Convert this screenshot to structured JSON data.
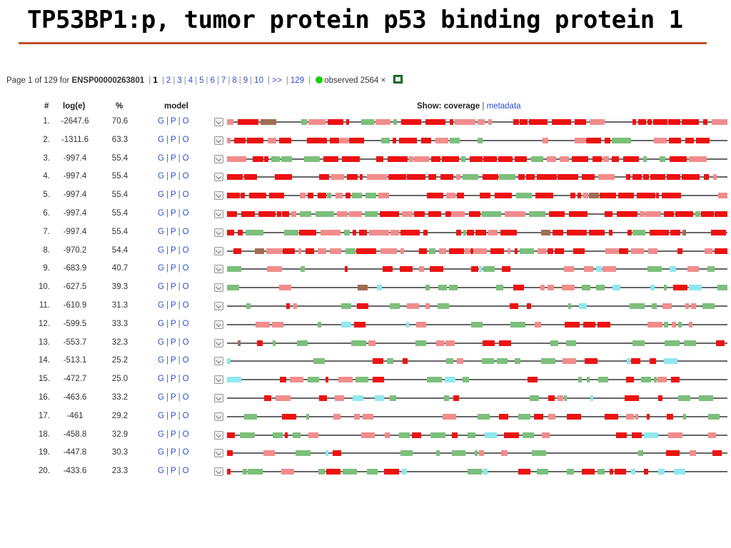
{
  "slide_title": "TP53BP1:p, tumor protein p53 binding protein 1",
  "pager": {
    "prefix": "Page 1 of 129 for",
    "protein_id": "ENSP00000263801",
    "current": "1",
    "pages": [
      "2",
      "3",
      "4",
      "5",
      "6",
      "7",
      "8",
      "9",
      "10"
    ],
    "next": ">>",
    "last": "129",
    "observed": "observed 2564",
    "close": "×",
    "excel_icon": "spreadsheet-icon"
  },
  "headers": {
    "num": "#",
    "loge": "log(e)",
    "pct": "%",
    "model": "model",
    "show_label": "Show: coverage",
    "metadata_link": "metadata"
  },
  "model_links": {
    "g": "G",
    "p": "P",
    "o": "O"
  },
  "colors": {
    "strong_red": "#ee1111",
    "light_red": "#f28c8c",
    "green": "#7bc07b",
    "cyan": "#8fe8ee",
    "line": "#666666",
    "brown": "#a06d52",
    "link": "#2a4fd0",
    "rule": "#c0502a"
  },
  "rows": [
    {
      "num": "1.",
      "loge": "-2647.6",
      "pct": "70.6"
    },
    {
      "num": "2.",
      "loge": "-1311.6",
      "pct": "63.3"
    },
    {
      "num": "3.",
      "loge": "-997.4",
      "pct": "55.4"
    },
    {
      "num": "4.",
      "loge": "-997.4",
      "pct": "55.4"
    },
    {
      "num": "5.",
      "loge": "-997.4",
      "pct": "55.4"
    },
    {
      "num": "6.",
      "loge": "-997.4",
      "pct": "55.4"
    },
    {
      "num": "7.",
      "loge": "-997.4",
      "pct": "55.4"
    },
    {
      "num": "8.",
      "loge": "-970.2",
      "pct": "54.4"
    },
    {
      "num": "9.",
      "loge": "-683.9",
      "pct": "40.7"
    },
    {
      "num": "10.",
      "loge": "-627.5",
      "pct": "39.3"
    },
    {
      "num": "11.",
      "loge": "-610.9",
      "pct": "31.3"
    },
    {
      "num": "12.",
      "loge": "-599.5",
      "pct": "33.3"
    },
    {
      "num": "13.",
      "loge": "-553.7",
      "pct": "32.3"
    },
    {
      "num": "14.",
      "loge": "-513.1",
      "pct": "25.2"
    },
    {
      "num": "15.",
      "loge": "-472.7",
      "pct": "25.0"
    },
    {
      "num": "16.",
      "loge": "-463.6",
      "pct": "33.2"
    },
    {
      "num": "17.",
      "loge": "-461",
      "pct": "29.2"
    },
    {
      "num": "18.",
      "loge": "-458.8",
      "pct": "32.9"
    },
    {
      "num": "19.",
      "loge": "-447.8",
      "pct": "30.3"
    },
    {
      "num": "20.",
      "loge": "-433.6",
      "pct": "23.3"
    }
  ]
}
